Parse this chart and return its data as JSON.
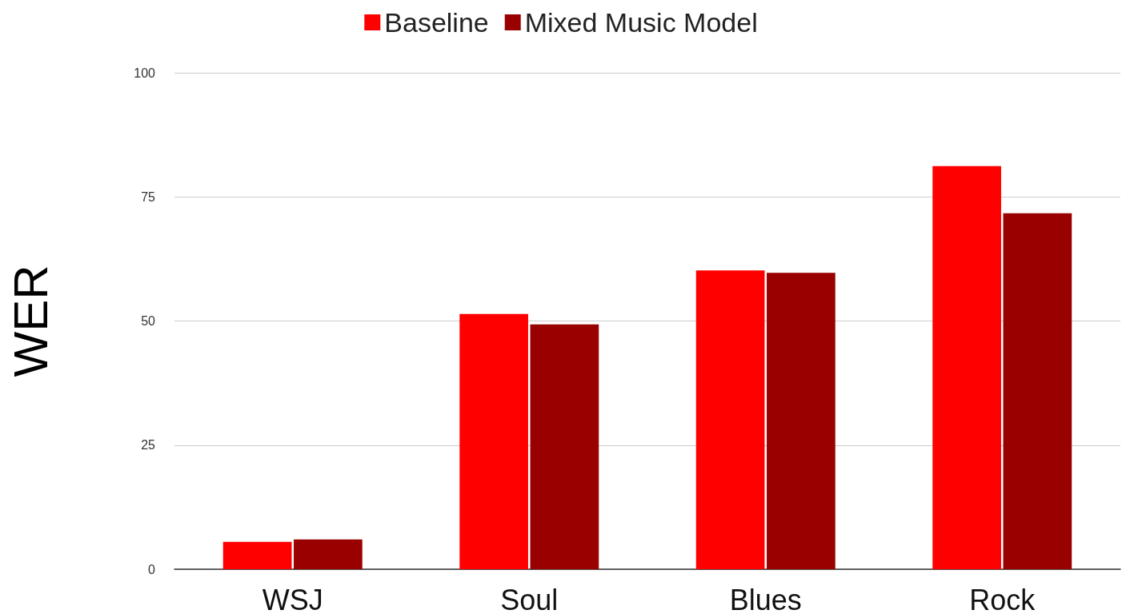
{
  "chart_data": {
    "type": "bar",
    "ylabel": "WER",
    "categories": [
      "WSJ",
      "Soul",
      "Blues",
      "Rock"
    ],
    "series": [
      {
        "name": "Baseline",
        "color": "#ff0000",
        "values": [
          5.5,
          51.4,
          60.2,
          81.2
        ]
      },
      {
        "name": "Mixed Music Model",
        "color": "#990000",
        "values": [
          6.0,
          49.3,
          59.7,
          71.7
        ]
      }
    ],
    "ylim": [
      0,
      100
    ],
    "yticks": [
      0,
      25,
      50,
      75,
      100
    ],
    "grid": "y",
    "legend": "top"
  }
}
